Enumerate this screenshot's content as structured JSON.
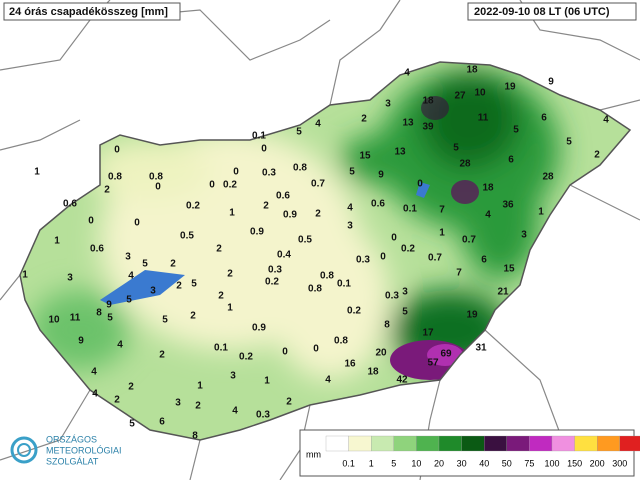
{
  "header": {
    "title": "24 órás csapadékösszeg [mm]",
    "timestamp": "2022-09-10 08 LT (06 UTC)"
  },
  "stations": [
    4,
    18,
    9,
    19,
    27,
    10,
    18,
    3,
    2,
    13,
    39,
    11,
    6,
    4,
    4,
    5,
    0.1,
    0,
    5,
    5,
    5,
    2,
    15,
    13,
    0,
    28,
    6,
    0.8,
    5,
    9,
    0,
    0.3,
    28,
    1,
    0.8,
    0.8,
    0,
    0.2,
    0,
    0.7,
    0,
    18,
    0.6,
    2,
    0.6,
    0.2,
    1,
    2,
    4,
    0.6,
    0.1,
    7,
    36,
    0.9,
    2,
    0,
    0,
    4,
    1,
    3,
    0.9,
    1,
    0.5,
    0.5,
    1,
    0,
    0.2,
    0.7,
    3,
    0.6,
    3,
    2,
    0.4,
    0.3,
    0,
    0.7,
    6,
    5,
    2,
    1,
    3,
    4,
    0.3,
    2,
    0.8,
    0.1,
    7,
    15,
    5,
    2,
    3,
    0.2,
    0.8,
    3,
    0.3,
    21,
    9,
    5,
    5,
    2,
    1,
    10,
    11,
    8,
    5,
    2,
    0.2,
    5,
    19,
    0.9,
    8,
    17,
    9,
    4,
    0.8,
    31,
    0.1,
    0.2,
    0,
    0,
    2,
    20,
    69,
    3,
    1,
    4,
    16,
    57,
    18,
    4,
    42,
    2,
    1,
    2,
    3,
    2,
    2,
    0.3,
    4,
    4,
    6,
    5,
    8
  ],
  "legend": {
    "unit": "mm",
    "ticks": [
      0.1,
      1,
      5,
      10,
      20,
      30,
      40,
      50,
      75,
      100,
      150,
      200,
      300
    ],
    "colors": [
      "#ffffff",
      "#f7f7d0",
      "#c8eab0",
      "#8fd37c",
      "#4fb34f",
      "#1f8a2a",
      "#0b5a14",
      "#3a1040",
      "#7a1a7a",
      "#c02ac0",
      "#f090e0",
      "#ffe040",
      "#ff9a20",
      "#e02020"
    ]
  },
  "logo": {
    "line1": "ORSZÁGOS",
    "line2": "METEOROLÓGIAI",
    "line3": "SZOLGÁLAT"
  }
}
